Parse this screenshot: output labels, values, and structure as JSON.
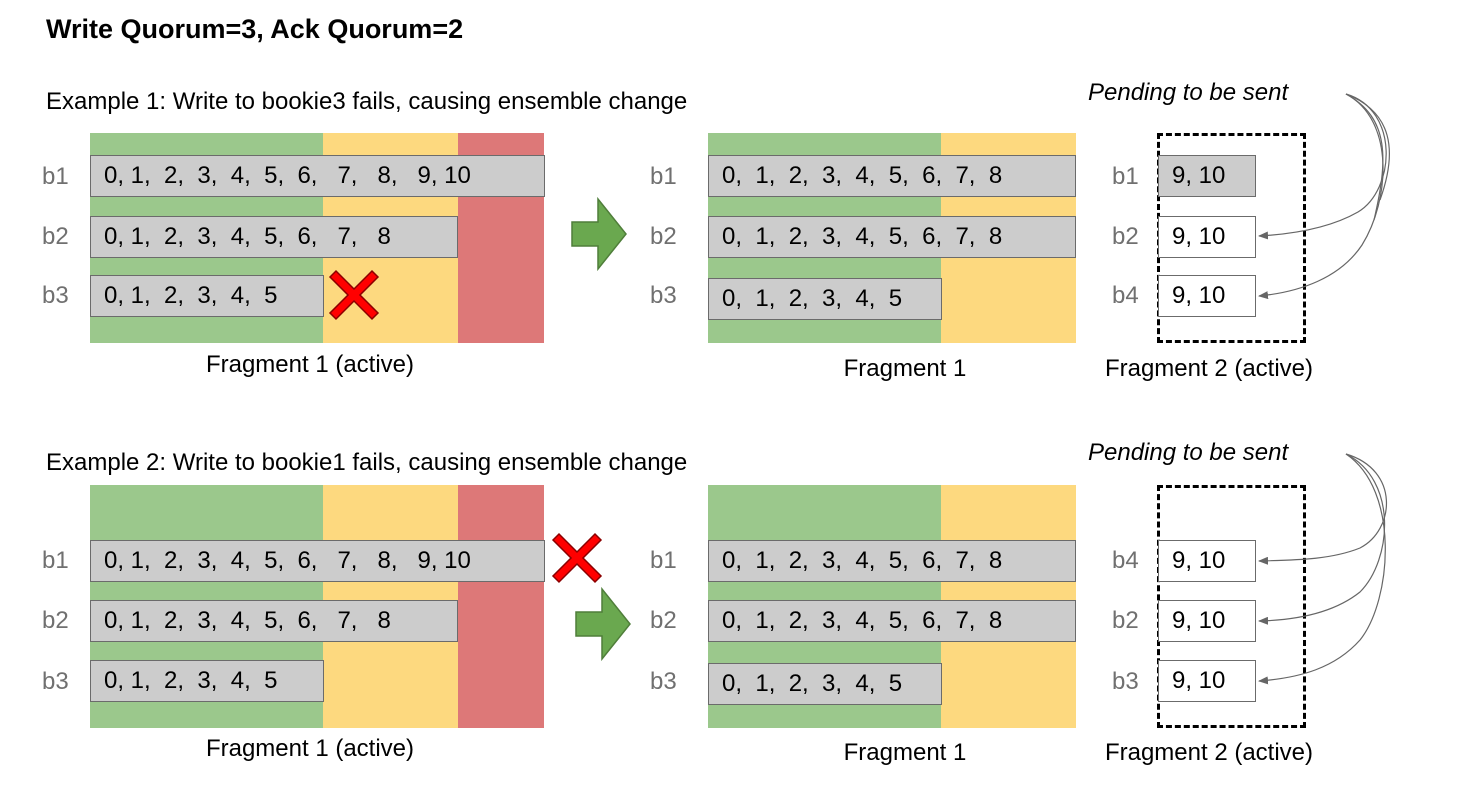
{
  "title": "Write Quorum=3, Ack Quorum=2",
  "example1": {
    "caption": "Example 1: Write to bookie3 fails, causing ensemble change",
    "pending_label": "Pending to be sent",
    "before": {
      "rows": [
        {
          "bookie": "b1",
          "entries": "0, 1,  2,  3,  4,  5,  6,   7,   8,   9, 10"
        },
        {
          "bookie": "b2",
          "entries": "0, 1,  2,  3,  4,  5,  6,   7,   8"
        },
        {
          "bookie": "b3",
          "entries": "0, 1,  2,  3,  4,  5"
        }
      ],
      "label": "Fragment 1 (active)"
    },
    "after": {
      "rows": [
        {
          "bookie": "b1",
          "entries": "0,  1,  2,  3,  4,  5,  6,  7,  8"
        },
        {
          "bookie": "b2",
          "entries": "0,  1,  2,  3,  4,  5,  6,  7,  8"
        },
        {
          "bookie": "b3",
          "entries": "0,  1,  2,  3,  4,  5"
        }
      ],
      "label": "Fragment 1"
    },
    "fragment2": {
      "rows": [
        {
          "bookie": "b1",
          "entries": "9, 10"
        },
        {
          "bookie": "b2",
          "entries": "9, 10"
        },
        {
          "bookie": "b4",
          "entries": "9, 10"
        }
      ],
      "label": "Fragment 2 (active)"
    }
  },
  "example2": {
    "caption": "Example 2: Write to bookie1 fails, causing ensemble change",
    "pending_label": "Pending to be sent",
    "before": {
      "rows": [
        {
          "bookie": "b1",
          "entries": "0, 1,  2,  3,  4,  5,  6,   7,   8,   9, 10"
        },
        {
          "bookie": "b2",
          "entries": "0, 1,  2,  3,  4,  5,  6,   7,   8"
        },
        {
          "bookie": "b3",
          "entries": "0, 1,  2,  3,  4,  5"
        }
      ],
      "label": "Fragment 1 (active)"
    },
    "after": {
      "rows": [
        {
          "bookie": "b1",
          "entries": "0,  1,  2,  3,  4,  5,  6,  7,  8"
        },
        {
          "bookie": "b2",
          "entries": "0,  1,  2,  3,  4,  5,  6,  7,  8"
        },
        {
          "bookie": "b3",
          "entries": "0,  1,  2,  3,  4,  5"
        }
      ],
      "label": "Fragment 1"
    },
    "fragment2": {
      "rows": [
        {
          "bookie": "b4",
          "entries": "9, 10"
        },
        {
          "bookie": "b2",
          "entries": "9, 10"
        },
        {
          "bookie": "b3",
          "entries": "9, 10"
        }
      ],
      "label": "Fragment 2 (active)"
    }
  },
  "colors": {
    "acked": "#9bc88c",
    "pending_ack": "#fdd97f",
    "failed": "#dd7878",
    "arrow": "#6aa84f",
    "cross": "#ff0000"
  }
}
